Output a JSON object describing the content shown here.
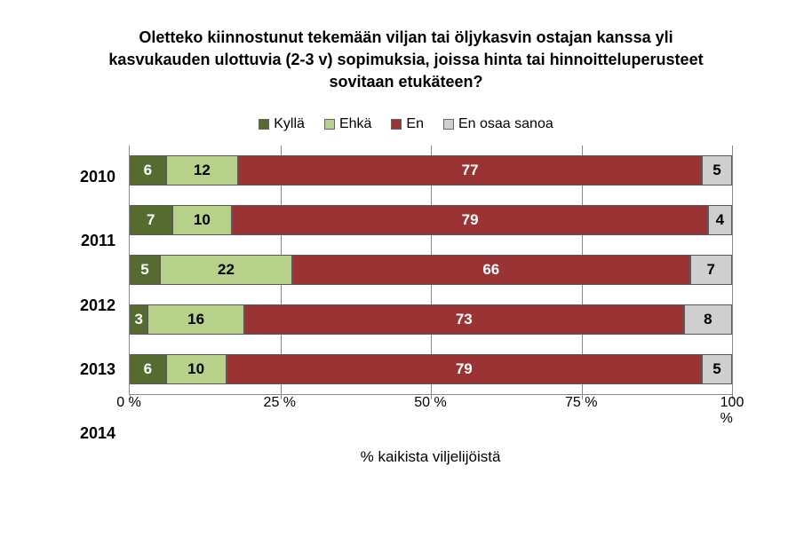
{
  "chart": {
    "type": "stacked-bar-horizontal",
    "title": "Oletteko kiinnostunut tekemään viljan tai öljykasvin ostajan kanssa yli kasvukauden ulottuvia (2-3 v) sopimuksia, joissa hinta tai hinnoitteluperusteet sovitaan etukäteen?",
    "x_title": "% kaikista viljelijöistä",
    "background_color": "#ffffff",
    "title_fontsize": 18,
    "label_fontsize": 16,
    "legend": [
      {
        "label": "Kyllä",
        "color": "#556b2f"
      },
      {
        "label": "Ehkä",
        "color": "#b8d18a"
      },
      {
        "label": "En",
        "color": "#9a3333"
      },
      {
        "label": "En osaa sanoa",
        "color": "#cfcfcf"
      }
    ],
    "categories": [
      "2010",
      "2011",
      "2012",
      "2013",
      "2014"
    ],
    "series": [
      {
        "key": "kylla",
        "values": [
          6,
          7,
          5,
          3,
          6
        ],
        "color": "#556b2f",
        "text_color": "#ffffff"
      },
      {
        "key": "ehka",
        "values": [
          12,
          10,
          22,
          16,
          10
        ],
        "color": "#b8d18a",
        "text_color": "#000000"
      },
      {
        "key": "en",
        "values": [
          77,
          79,
          66,
          73,
          79
        ],
        "color": "#9a3333",
        "text_color": "#ffffff"
      },
      {
        "key": "eos",
        "values": [
          5,
          4,
          7,
          8,
          5
        ],
        "color": "#cfcfcf",
        "text_color": "#000000"
      }
    ],
    "xlim": [
      0,
      100
    ],
    "xtick_step": 25,
    "xtick_labels": [
      "0 %",
      "25 %",
      "50 %",
      "75 %",
      "100 %"
    ],
    "grid_color": "#888888",
    "bar_border_color": "#5a5a5a"
  }
}
